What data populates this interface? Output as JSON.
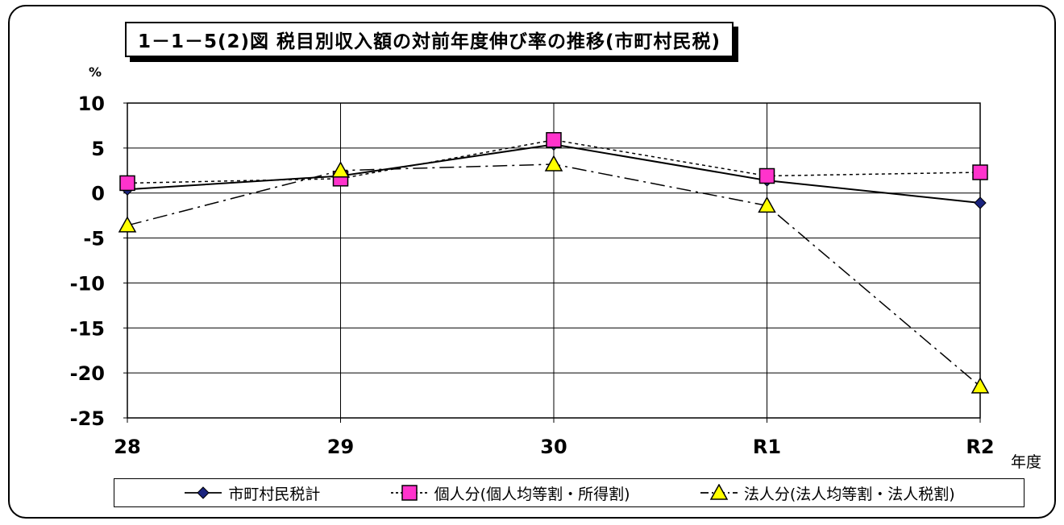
{
  "chart_data": {
    "type": "line",
    "title": "1－1－5(2)図 税目別収入額の対前年度伸び率の推移(市町村民税)",
    "ylabel": "%",
    "xlabel": "年度",
    "categories": [
      "28",
      "29",
      "30",
      "R1",
      "R2"
    ],
    "ylim": [
      -25,
      10
    ],
    "yticks": [
      "10",
      "5",
      "0",
      "-5",
      "-10",
      "-15",
      "-20",
      "-25"
    ],
    "grid": true,
    "legend": "bottom",
    "series": [
      {
        "name": "市町村民税計",
        "values": [
          0.4,
          1.9,
          5.4,
          1.4,
          -1.1
        ],
        "color": "#1a237e",
        "dash": "",
        "marker": "diamond"
      },
      {
        "name": "個人分(個人均等割・所得割)",
        "values": [
          1.1,
          1.6,
          5.9,
          1.9,
          2.3
        ],
        "color": "#ff33cc",
        "dash": "4,4",
        "marker": "square"
      },
      {
        "name": "法人分(法人均等割・法人税割)",
        "values": [
          -3.6,
          2.5,
          3.2,
          -1.4,
          -21.5
        ],
        "color": "#ffff00",
        "dash": "18,6,3,6",
        "marker": "triangle"
      }
    ]
  }
}
